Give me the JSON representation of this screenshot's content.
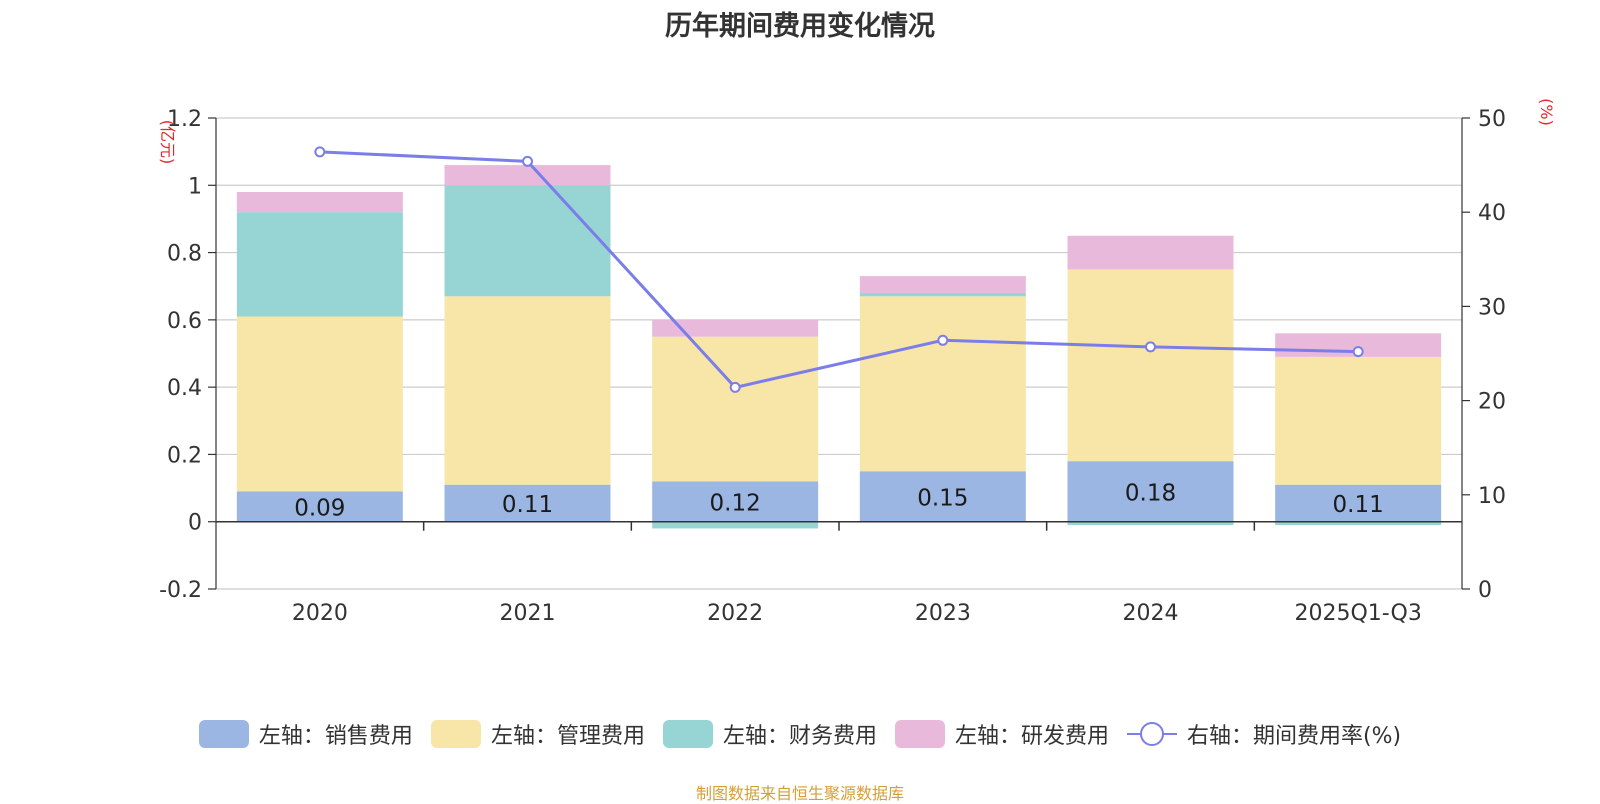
{
  "chart_data": {
    "type": "bar",
    "stacked": true,
    "title": "历年期间费用变化情况",
    "categories": [
      "2020",
      "2021",
      "2022",
      "2023",
      "2024",
      "2025Q1-Q3"
    ],
    "left_axis": {
      "unit": "(亿元)",
      "ylim": [
        -0.2,
        1.2
      ],
      "ticks": [
        "1.2",
        "1",
        "0.8",
        "0.6",
        "0.4",
        "0.2",
        "0",
        "-0.2"
      ],
      "tick_values": [
        1.2,
        1,
        0.8,
        0.6,
        0.4,
        0.2,
        0,
        -0.2
      ]
    },
    "right_axis": {
      "unit": "(%)",
      "ylim": [
        0,
        50
      ],
      "ticks": [
        "50",
        "40",
        "30",
        "20",
        "10",
        "0"
      ],
      "tick_values": [
        50,
        40,
        30,
        20,
        10,
        0
      ]
    },
    "series": [
      {
        "name": "左轴：销售费用",
        "axis": "left",
        "color": "#9bb6e2",
        "values": [
          0.09,
          0.11,
          0.12,
          0.15,
          0.18,
          0.11
        ],
        "labels": [
          "0.09",
          "0.11",
          "0.12",
          "0.15",
          "0.18",
          "0.11"
        ]
      },
      {
        "name": "左轴：管理费用",
        "axis": "left",
        "color": "#f8e6a8",
        "values": [
          0.52,
          0.56,
          0.43,
          0.52,
          0.57,
          0.38
        ]
      },
      {
        "name": "左轴：财务费用",
        "axis": "left",
        "color": "#97d4d4",
        "values": [
          0.31,
          0.33,
          -0.02,
          0.01,
          -0.01,
          -0.01
        ]
      },
      {
        "name": "左轴：研发费用",
        "axis": "left",
        "color": "#e8b9db",
        "values": [
          0.06,
          0.06,
          0.05,
          0.05,
          0.1,
          0.07
        ]
      },
      {
        "name": "右轴：期间费用率(%)",
        "axis": "right",
        "type": "line",
        "color": "#7b7ee8",
        "values": [
          46.4,
          45.4,
          21.4,
          26.4,
          25.7,
          25.2
        ]
      }
    ],
    "source": "制图数据来自恒生聚源数据库"
  }
}
